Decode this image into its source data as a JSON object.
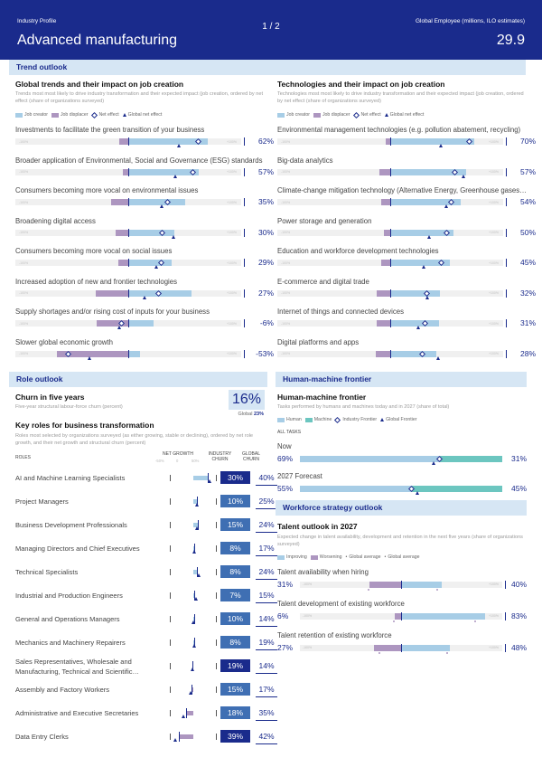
{
  "header": {
    "profile_label": "Industry Profile",
    "page": "1",
    "page_sep": "/",
    "page_total": "2",
    "employees_label": "Global Employee (millions, ILO estimates)",
    "title": "Advanced manufacturing",
    "employees_value": "29.9"
  },
  "colors": {
    "creator": "#a7cde6",
    "displacer": "#ad96c0",
    "net": "#1a2b8c",
    "teal": "#6cc6c0",
    "churn_dark": "#1a2b8c",
    "churn_mid": "#3f6fb3",
    "track": "#f0f0f0"
  },
  "trend_outlook": {
    "section_label": "Trend outlook",
    "left_heading": "Global trends and their impact on job creation",
    "left_desc": "Trends most most likely to drive industry transformation and their expected impact (job creation, ordered by net effect (share of organizations surveyed)",
    "right_heading": "Technologies and their impact on job creation",
    "right_desc": "Technologies most most likely to drive industry transformation and their expected impact (job creation, ordered by net effect (share of organizations surveyed)",
    "legend": {
      "creator": "Job creator",
      "displacer": "Job displacer",
      "net": "Net effect",
      "global": "Global net effect"
    },
    "axis_min": "-100%",
    "axis_max": "+100%",
    "trends": [
      {
        "label": "Investments to facilitate the green transition of your business",
        "value": "62%",
        "creator": 0.7,
        "displacer": 0.08,
        "net": 0.62,
        "global": 0.45
      },
      {
        "label": "Broader application of Environmental, Social and Governance (ESG) standards",
        "value": "57%",
        "creator": 0.62,
        "displacer": 0.05,
        "net": 0.57,
        "global": 0.42
      },
      {
        "label": "Consumers becoming more vocal on environmental issues",
        "value": "35%",
        "creator": 0.5,
        "displacer": 0.15,
        "net": 0.35,
        "global": 0.3
      },
      {
        "label": "Broadening digital access",
        "value": "30%",
        "creator": 0.41,
        "displacer": 0.11,
        "net": 0.3,
        "global": 0.4
      },
      {
        "label": "Consumers becoming more vocal on social issues",
        "value": "29%",
        "creator": 0.38,
        "displacer": 0.09,
        "net": 0.29,
        "global": 0.25
      },
      {
        "label": "Increased adoption of new and frontier technologies",
        "value": "27%",
        "creator": 0.56,
        "displacer": 0.29,
        "net": 0.27,
        "global": 0.15
      },
      {
        "label": "Supply shortages and/or rising cost of inputs for your business",
        "value": "-6%",
        "creator": 0.22,
        "displacer": 0.28,
        "net": -0.06,
        "global": -0.08
      },
      {
        "label": "Slower global economic growth",
        "value": "-53%",
        "creator": 0.1,
        "displacer": 0.63,
        "net": -0.53,
        "global": -0.34
      }
    ],
    "technologies": [
      {
        "label": "Environmental management technologies (e.g. pollution abatement, recycling)",
        "value": "70%",
        "creator": 0.74,
        "displacer": 0.04,
        "net": 0.7,
        "global": 0.45
      },
      {
        "label": "Big-data analytics",
        "value": "57%",
        "creator": 0.67,
        "displacer": 0.1,
        "net": 0.57,
        "global": 0.65
      },
      {
        "label": "Climate-change mitigation technology (Alternative Energy, Greenhouse gases…",
        "value": "54%",
        "creator": 0.62,
        "displacer": 0.08,
        "net": 0.54,
        "global": 0.5
      },
      {
        "label": "Power storage and generation",
        "value": "50%",
        "creator": 0.56,
        "displacer": 0.06,
        "net": 0.5,
        "global": 0.35
      },
      {
        "label": "Education and workforce development technologies",
        "value": "45%",
        "creator": 0.53,
        "displacer": 0.08,
        "net": 0.45,
        "global": 0.3
      },
      {
        "label": "E-commerce and digital trade",
        "value": "32%",
        "creator": 0.44,
        "displacer": 0.12,
        "net": 0.32,
        "global": 0.33
      },
      {
        "label": "Internet of things and connected devices",
        "value": "31%",
        "creator": 0.43,
        "displacer": 0.12,
        "net": 0.31,
        "global": 0.25
      },
      {
        "label": "Digital platforms and apps",
        "value": "28%",
        "creator": 0.41,
        "displacer": 0.13,
        "net": 0.28,
        "global": 0.43
      }
    ]
  },
  "role_outlook": {
    "section_label": "Role outlook",
    "churn_heading": "Churn in five years",
    "churn_desc": "Five-year structural labour-force churn (percent)",
    "churn_value": "16%",
    "global_label": "Global",
    "global_value": "23%",
    "key_roles_heading": "Key roles for business transformation",
    "key_roles_desc": "Roles most selected by organizations surveyed (as either growing, stable or declining), ordered by net role growth, and their net growth and structural churn (percent)",
    "col_roles": "ROLES",
    "col_net_growth": "NET GROWTH",
    "col_net_axis": [
      "-50%",
      "0",
      "50%"
    ],
    "col_industry_churn": "INDUSTRY CHURN",
    "col_global_churn": "GLOBAL CHURN",
    "roles": [
      {
        "name": "AI and Machine Learning Specialists",
        "net": 0.3,
        "global_net": 0.35,
        "churn": "30%",
        "global": "40%"
      },
      {
        "name": "Project Managers",
        "net": 0.07,
        "global_net": 0.08,
        "churn": "10%",
        "global": "25%"
      },
      {
        "name": "Business Development Professionals",
        "net": 0.1,
        "global_net": 0.08,
        "churn": "15%",
        "global": "24%"
      },
      {
        "name": "Managing Directors and Chief Executives",
        "net": 0.02,
        "global_net": 0.03,
        "churn": "8%",
        "global": "17%"
      },
      {
        "name": "Technical Specialists",
        "net": 0.07,
        "global_net": 0.12,
        "churn": "8%",
        "global": "24%"
      },
      {
        "name": "Industrial and Production Engineers",
        "net": 0.01,
        "global_net": 0.06,
        "churn": "7%",
        "global": "15%"
      },
      {
        "name": "General and Operations Managers",
        "net": 0.01,
        "global_net": 0.0,
        "churn": "10%",
        "global": "14%"
      },
      {
        "name": "Mechanics and Machinery Repairers",
        "net": 0.01,
        "global_net": 0.02,
        "churn": "8%",
        "global": "19%"
      },
      {
        "name": "Sales Representatives, Wholesale and Manufacturing, Technical and Scientific…",
        "net": -0.02,
        "global_net": -0.02,
        "churn": "19%",
        "global": "14%"
      },
      {
        "name": "Assembly and Factory Workers",
        "net": -0.03,
        "global_net": -0.05,
        "churn": "15%",
        "global": "17%"
      },
      {
        "name": "Administrative and Executive Secretaries",
        "net": -0.15,
        "global_net": -0.2,
        "churn": "18%",
        "global": "35%"
      },
      {
        "name": "Data Entry Clerks",
        "net": -0.3,
        "global_net": -0.38,
        "churn": "39%",
        "global": "42%"
      }
    ]
  },
  "human_machine": {
    "section_label": "Human-machine frontier",
    "heading": "Human-machine frontier",
    "desc": "Tasks performed by humans and machines today and in 2027 (share of total)",
    "legend": {
      "human": "Human",
      "machine": "Machine",
      "industry": "Industry Frontier",
      "global": "Global Frontier"
    },
    "all_tasks": "ALL TASKS",
    "rows": [
      {
        "label": "Now",
        "human": "69%",
        "machine": "31%",
        "human_share": 0.69,
        "industry": 0.69,
        "global": 0.66
      },
      {
        "label": "2027 Forecast",
        "human": "55%",
        "machine": "45%",
        "human_share": 0.55,
        "industry": 0.55,
        "global": 0.58
      }
    ]
  },
  "workforce": {
    "section_label": "Workforce strategy outlook",
    "heading": "Talent outlook in 2027",
    "desc": "Expected change in talent availability, development and retention in the next five years (share of organizations surveyed)",
    "legend": {
      "improving": "Improving",
      "worsening": "Worsening",
      "global_avg1": "Global average",
      "global_avg2": "Global average"
    },
    "axis_min": "-100%",
    "axis_max": "+100%",
    "rows": [
      {
        "label": "Talent availability when hiring",
        "left": "31%",
        "right": "40%",
        "improving": 0.4,
        "worsening": 0.31,
        "g_imp": 0.35,
        "g_wor": 0.33
      },
      {
        "label": "Talent development of existing workforce",
        "left": "6%",
        "right": "83%",
        "improving": 0.83,
        "worsening": 0.06,
        "g_imp": 0.72,
        "g_wor": 0.08
      },
      {
        "label": "Talent retention of existing workforce",
        "left": "27%",
        "right": "48%",
        "improving": 0.48,
        "worsening": 0.27,
        "g_imp": 0.45,
        "g_wor": 0.22
      }
    ]
  }
}
